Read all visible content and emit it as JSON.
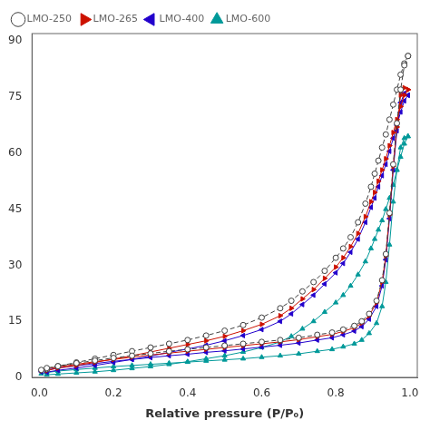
{
  "chart_data": {
    "type": "line",
    "xlabel": "Relative pressure (P/P₀)",
    "xlim": [
      -0.02,
      1.02
    ],
    "ylim": [
      0,
      92
    ],
    "xticks": [
      {
        "value": 0,
        "label": "0.0"
      },
      0.2,
      0.4,
      0.6,
      0.8,
      {
        "value": 1,
        "label": "1.0"
      }
    ],
    "yticks": [
      0,
      15,
      30,
      45,
      60,
      75,
      90
    ],
    "grid": false,
    "legend": "upper left",
    "series": [
      {
        "name": "LMO-250",
        "color": "#404040",
        "marker": "open_circle",
        "line_style": "dashed",
        "x": [
          0.005,
          0.02,
          0.05,
          0.1,
          0.15,
          0.2,
          0.25,
          0.3,
          0.35,
          0.4,
          0.45,
          0.5,
          0.55,
          0.6,
          0.65,
          0.7,
          0.75,
          0.79,
          0.82,
          0.85,
          0.87,
          0.89,
          0.91,
          0.925,
          0.935,
          0.945,
          0.955,
          0.965,
          0.975,
          0.985,
          0.995
        ],
        "values": [
          2.0,
          2.5,
          3.0,
          3.8,
          4.5,
          5.2,
          5.8,
          6.4,
          7.0,
          7.5,
          8.0,
          8.5,
          9.0,
          9.5,
          10.0,
          10.6,
          11.4,
          12.0,
          12.8,
          13.8,
          15.0,
          17.0,
          20.5,
          26.0,
          33.0,
          44.0,
          57.0,
          68.0,
          77.0,
          83.5,
          86.0
        ],
        "desorption_x": [
          0.995,
          0.985,
          0.975,
          0.965,
          0.955,
          0.945,
          0.935,
          0.925,
          0.915,
          0.905,
          0.895,
          0.88,
          0.86,
          0.84,
          0.82,
          0.8,
          0.77,
          0.74,
          0.71,
          0.68,
          0.65,
          0.6,
          0.55,
          0.5,
          0.45,
          0.4,
          0.35,
          0.3,
          0.25,
          0.2,
          0.15,
          0.1,
          0.05,
          0.02
        ],
        "desorption_values": [
          86.0,
          84.0,
          81.0,
          77.0,
          73.0,
          69.0,
          65.0,
          61.5,
          58.0,
          54.5,
          51.0,
          46.5,
          41.5,
          37.5,
          34.5,
          32.0,
          28.5,
          25.5,
          23.0,
          20.5,
          18.5,
          16.0,
          14.0,
          12.5,
          11.2,
          10.0,
          9.0,
          8.0,
          7.0,
          6.0,
          5.0,
          4.0,
          3.0,
          2.2
        ]
      },
      {
        "name": "LMO-265",
        "color": "#cc1100",
        "marker": "triangle_right",
        "line_style": "solid",
        "x": [
          0.005,
          0.02,
          0.05,
          0.1,
          0.15,
          0.2,
          0.25,
          0.3,
          0.35,
          0.4,
          0.45,
          0.5,
          0.55,
          0.6,
          0.65,
          0.7,
          0.75,
          0.79,
          0.82,
          0.85,
          0.87,
          0.89,
          0.91,
          0.925,
          0.935,
          0.945,
          0.955,
          0.965,
          0.975,
          0.985,
          0.995
        ],
        "values": [
          1.8,
          2.3,
          2.8,
          3.5,
          4.2,
          4.8,
          5.4,
          6.0,
          6.5,
          7.0,
          7.5,
          8.0,
          8.5,
          9.0,
          9.5,
          10.1,
          10.9,
          11.5,
          12.3,
          13.3,
          14.5,
          16.5,
          20.0,
          25.5,
          32.5,
          43.5,
          56.5,
          67.0,
          75.5,
          77.5,
          77.0
        ],
        "desorption_x": [
          0.995,
          0.985,
          0.975,
          0.965,
          0.955,
          0.945,
          0.935,
          0.925,
          0.915,
          0.905,
          0.895,
          0.88,
          0.86,
          0.84,
          0.82,
          0.8,
          0.77,
          0.74,
          0.71,
          0.68,
          0.65,
          0.6,
          0.55,
          0.5,
          0.45,
          0.4,
          0.35,
          0.3,
          0.25,
          0.2,
          0.15,
          0.1,
          0.05,
          0.02
        ],
        "desorption_values": [
          77.0,
          75.5,
          72.5,
          69.0,
          65.5,
          62.0,
          58.5,
          55.5,
          52.5,
          49.5,
          47.0,
          43.0,
          38.5,
          35.0,
          32.0,
          29.5,
          26.5,
          23.5,
          21.0,
          18.5,
          16.5,
          14.2,
          12.5,
          11.0,
          9.8,
          8.8,
          7.8,
          6.8,
          5.8,
          4.9,
          4.0,
          3.2,
          2.5,
          1.8
        ]
      },
      {
        "name": "LMO-400",
        "color": "#2200cc",
        "marker": "triangle_left",
        "line_style": "solid",
        "x": [
          0.005,
          0.02,
          0.05,
          0.1,
          0.15,
          0.2,
          0.25,
          0.3,
          0.35,
          0.4,
          0.45,
          0.5,
          0.55,
          0.6,
          0.65,
          0.7,
          0.75,
          0.79,
          0.82,
          0.85,
          0.87,
          0.89,
          0.91,
          0.925,
          0.935,
          0.945,
          0.955,
          0.965,
          0.975,
          0.985,
          0.995
        ],
        "values": [
          1.5,
          2.0,
          2.5,
          3.1,
          3.7,
          4.3,
          4.8,
          5.3,
          5.8,
          6.2,
          6.7,
          7.1,
          7.6,
          8.1,
          8.6,
          9.2,
          10.0,
          10.6,
          11.4,
          12.4,
          13.6,
          15.6,
          19.0,
          24.5,
          31.5,
          42.5,
          55.5,
          66.0,
          73.5,
          76.0,
          75.5
        ],
        "desorption_x": [
          0.995,
          0.985,
          0.975,
          0.965,
          0.955,
          0.945,
          0.935,
          0.925,
          0.915,
          0.905,
          0.895,
          0.88,
          0.86,
          0.84,
          0.82,
          0.8,
          0.77,
          0.74,
          0.71,
          0.68,
          0.65,
          0.6,
          0.55,
          0.5,
          0.45,
          0.4,
          0.35,
          0.3,
          0.25,
          0.2,
          0.15,
          0.1,
          0.05,
          0.02
        ],
        "desorption_values": [
          75.5,
          74.0,
          71.0,
          67.5,
          64.0,
          60.5,
          57.0,
          54.0,
          51.0,
          48.0,
          45.5,
          41.5,
          37.0,
          33.5,
          30.5,
          28.0,
          25.0,
          22.0,
          19.5,
          17.0,
          15.0,
          12.8,
          11.2,
          9.8,
          8.6,
          7.6,
          6.7,
          5.7,
          4.8,
          4.0,
          3.2,
          2.5,
          1.9,
          1.4
        ]
      },
      {
        "name": "LMO-600",
        "color": "#009999",
        "marker": "triangle_up",
        "line_style": "solid",
        "x": [
          0.005,
          0.02,
          0.05,
          0.1,
          0.15,
          0.2,
          0.25,
          0.3,
          0.35,
          0.4,
          0.45,
          0.5,
          0.55,
          0.6,
          0.65,
          0.7,
          0.75,
          0.79,
          0.82,
          0.85,
          0.87,
          0.89,
          0.91,
          0.925,
          0.935,
          0.945,
          0.955,
          0.965,
          0.975,
          0.985,
          0.995
        ],
        "values": [
          1.0,
          1.3,
          1.7,
          2.1,
          2.5,
          2.9,
          3.2,
          3.5,
          3.8,
          4.1,
          4.4,
          4.7,
          5.0,
          5.4,
          5.8,
          6.3,
          7.0,
          7.5,
          8.2,
          9.0,
          10.0,
          11.8,
          14.5,
          19.0,
          25.5,
          35.5,
          47.0,
          55.5,
          61.5,
          64.0,
          64.5
        ],
        "desorption_x": [
          0.995,
          0.985,
          0.975,
          0.965,
          0.955,
          0.945,
          0.935,
          0.925,
          0.915,
          0.905,
          0.895,
          0.88,
          0.86,
          0.84,
          0.82,
          0.8,
          0.77,
          0.74,
          0.71,
          0.68,
          0.65,
          0.6,
          0.55,
          0.5,
          0.45,
          0.4,
          0.35,
          0.3,
          0.25,
          0.2,
          0.15,
          0.1,
          0.05,
          0.02
        ],
        "desorption_values": [
          64.5,
          62.5,
          59.0,
          55.5,
          51.5,
          48.0,
          45.0,
          42.0,
          39.5,
          37.0,
          34.5,
          31.0,
          27.5,
          24.5,
          22.0,
          20.0,
          17.5,
          15.0,
          13.0,
          11.0,
          9.5,
          8.0,
          6.8,
          5.8,
          5.0,
          4.2,
          3.5,
          2.9,
          2.4,
          1.9,
          1.5,
          1.2,
          0.9,
          0.7
        ]
      }
    ]
  }
}
